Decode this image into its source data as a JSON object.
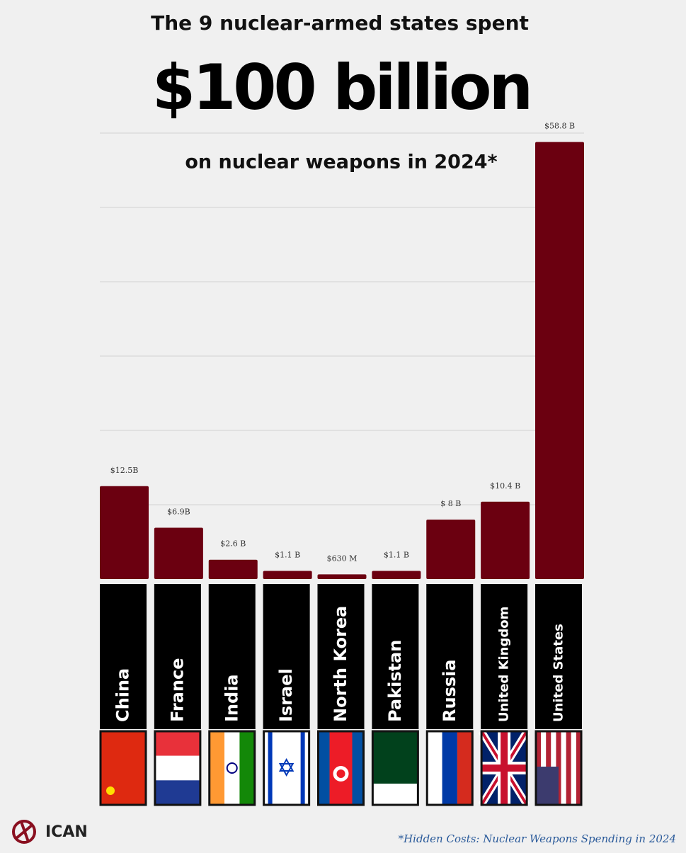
{
  "chart_data": {
    "type": "bar",
    "title": "The 9 nuclear-armed states spent",
    "headline": "$100 billion",
    "subtitle": "on nuclear weapons in 2024*",
    "categories": [
      "China",
      "France",
      "India",
      "Israel",
      "North Korea",
      "Pakistan",
      "Russia",
      "United Kingdom",
      "United States"
    ],
    "values": [
      12.5,
      6.9,
      2.6,
      1.1,
      0.63,
      1.1,
      8,
      10.4,
      58.8
    ],
    "value_labels": [
      "$12.5B",
      "$6.9B",
      "$2.6 B",
      "$1.1 B",
      "$630 M",
      "$1.1 B",
      "$ 8 B",
      "$10.4 B",
      "$58.8 B"
    ],
    "color": "#6b0010",
    "ylim": [
      0,
      60
    ],
    "yticks": [
      10,
      20,
      30,
      40,
      50,
      60
    ],
    "grid": true,
    "logo": "ICAN",
    "source": "*Hidden Costs: Nuclear Weapons Spending in 2024"
  }
}
